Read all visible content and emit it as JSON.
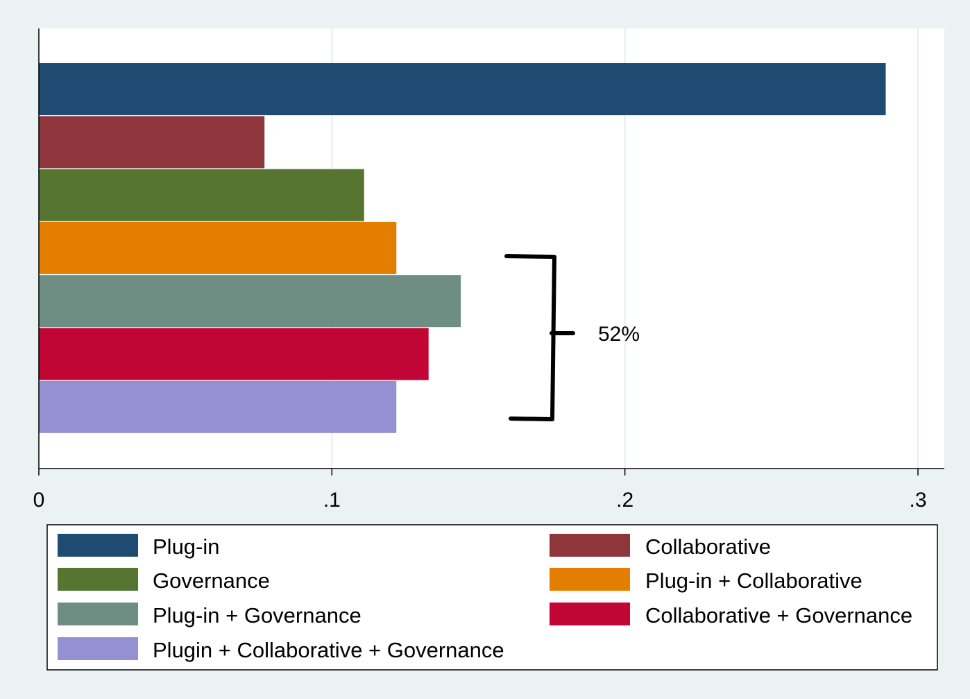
{
  "chart_data": {
    "type": "bar",
    "orientation": "horizontal",
    "title": "",
    "xlabel": "",
    "ylabel": "",
    "xlim": [
      0,
      0.3
    ],
    "x_ticks": [
      {
        "value": 0,
        "label": "0"
      },
      {
        "value": 0.1,
        "label": ".1"
      },
      {
        "value": 0.2,
        "label": ".2"
      },
      {
        "value": 0.3,
        "label": ".3"
      }
    ],
    "grid": true,
    "legend_position": "bottom",
    "series": [
      {
        "name": "Plug-in",
        "value": 0.289,
        "color": "#1f4a72"
      },
      {
        "name": "Collaborative",
        "value": 0.077,
        "color": "#8f363c"
      },
      {
        "name": "Governance",
        "value": 0.111,
        "color": "#567530"
      },
      {
        "name": "Plug-in + Collaborative",
        "value": 0.122,
        "color": "#e37e00"
      },
      {
        "name": "Plug-in + Governance",
        "value": 0.144,
        "color": "#6e8e84"
      },
      {
        "name": "Collaborative + Governance",
        "value": 0.133,
        "color": "#c10534"
      },
      {
        "name": "Plugin + Collaborative + Governance",
        "value": 0.122,
        "color": "#9490d1"
      }
    ],
    "annotation": {
      "text": "52%",
      "spans_series": [
        4,
        6
      ]
    }
  },
  "colors": {
    "background": "#eaf2f3",
    "plot_background": "#ffffff",
    "grid": "#e3eef0"
  }
}
